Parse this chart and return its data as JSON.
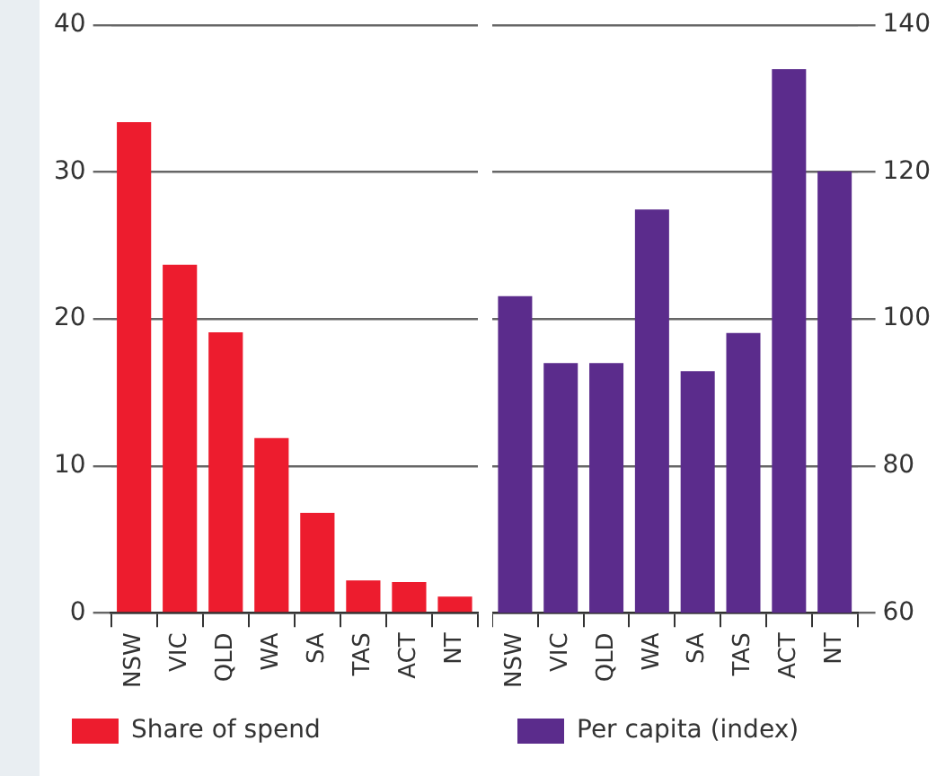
{
  "chart_data": [
    {
      "type": "bar",
      "categories": [
        "NSW",
        "VIC",
        "QLD",
        "WA",
        "SA",
        "TAS",
        "ACT",
        "NT"
      ],
      "series": [
        {
          "name": "Share of spend",
          "color": "#ed1c2e",
          "values": [
            33.4,
            23.7,
            19.1,
            11.9,
            6.8,
            2.2,
            2.1,
            1.1
          ]
        }
      ],
      "ylim": [
        0,
        40
      ],
      "yticks": [
        0,
        10,
        20,
        30,
        40
      ],
      "grid": "y",
      "legend": "bottom"
    },
    {
      "type": "bar",
      "categories": [
        "NSW",
        "VIC",
        "QLD",
        "WA",
        "SA",
        "TAS",
        "ACT",
        "NT"
      ],
      "series": [
        {
          "name": "Per capita (index)",
          "color": "#5b2c8c",
          "values": [
            103.1,
            94,
            94,
            114.9,
            92.9,
            98.1,
            134,
            120.1
          ],
          "axis": "y2"
        }
      ],
      "y2lim": [
        60,
        140
      ],
      "y2ticks": [
        60,
        80,
        100,
        120,
        140
      ],
      "grid": "y",
      "legend": "bottom"
    }
  ]
}
